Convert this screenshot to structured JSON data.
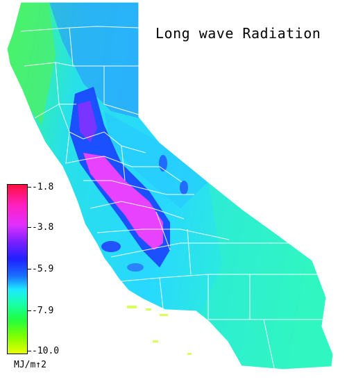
{
  "title": "Long wave Radiation",
  "legend": {
    "ticks": [
      "-1.8",
      "-3.8",
      "-5.9",
      "-7.9",
      "-10.0"
    ],
    "unit": "MJ/m↑2",
    "colors": [
      "#ff1040",
      "#ff20c0",
      "#e030ff",
      "#7a20ff",
      "#2020ff",
      "#1a70ff",
      "#1ce8ff",
      "#18ffb0",
      "#20ff40",
      "#80ff00",
      "#e8ff00"
    ]
  },
  "map": {
    "region": "California",
    "colors": {
      "coast": "#3cff8c",
      "northwest": "#50f070",
      "interior": "#28d0ff",
      "valley": "#1a50ff",
      "hot_core": "#ff40ff",
      "south_desert": "#20e8d8",
      "boundary": "#ffffff"
    }
  }
}
